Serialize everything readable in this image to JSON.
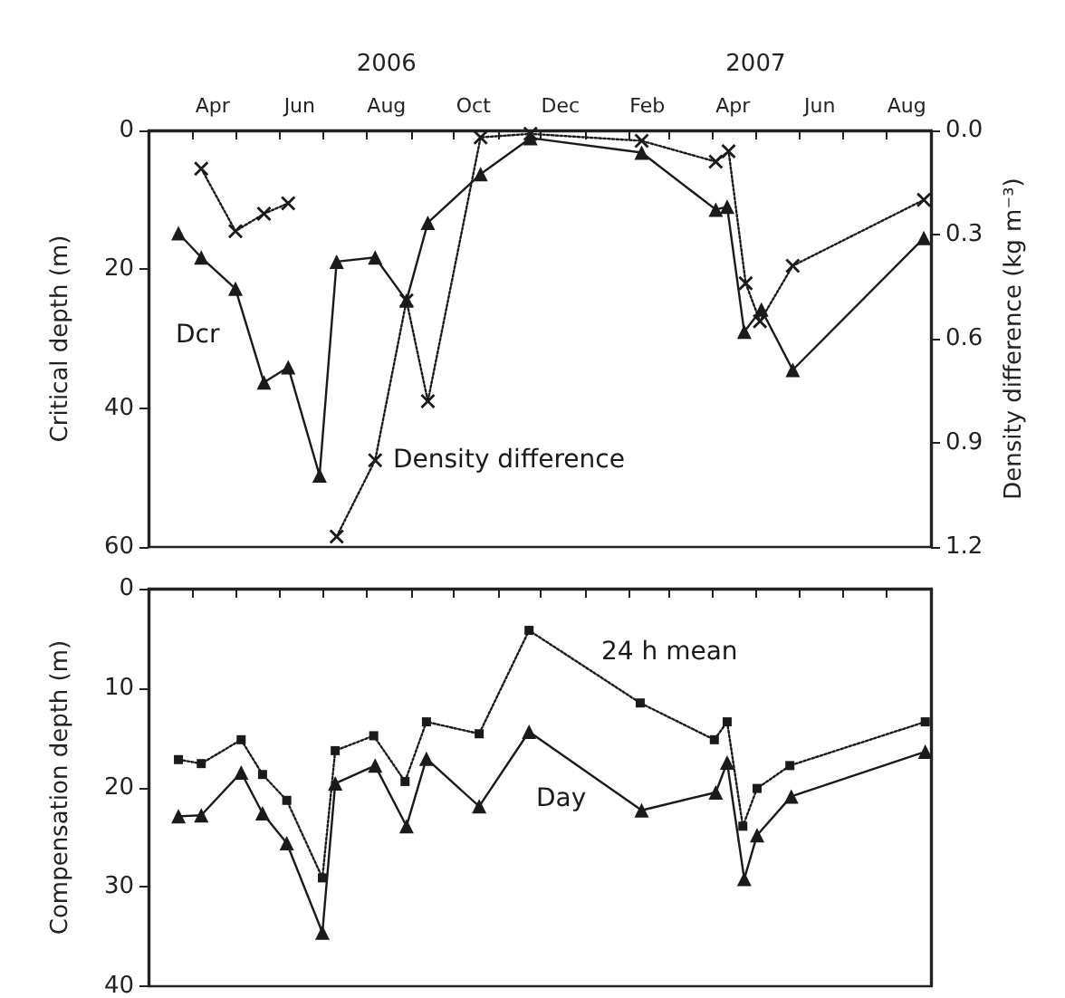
{
  "chart_data": [
    {
      "type": "line",
      "ylabel": "Critical depth (m)",
      "y2label": "Density difference (kg m⁻³)",
      "xlim": [
        "2006-03-01",
        "2007-09-01"
      ],
      "xticks": [
        {
          "value": "2006-03-01",
          "label": null
        },
        {
          "value": "2006-04-01",
          "label": null
        },
        {
          "value": "2006-04-15",
          "label": "Apr"
        },
        {
          "value": "2006-05-01",
          "label": null
        },
        {
          "value": "2006-06-01",
          "label": null
        },
        {
          "value": "2006-06-15",
          "label": "Jun"
        },
        {
          "value": "2006-07-01",
          "label": null
        },
        {
          "value": "2006-08-01",
          "label": null
        },
        {
          "value": "2006-08-15",
          "label": "Aug"
        },
        {
          "value": "2006-09-01",
          "label": null
        },
        {
          "value": "2006-10-01",
          "label": null
        },
        {
          "value": "2006-10-15",
          "label": "Oct"
        },
        {
          "value": "2006-11-01",
          "label": null
        },
        {
          "value": "2006-12-01",
          "label": null
        },
        {
          "value": "2006-12-15",
          "label": "Dec"
        },
        {
          "value": "2007-01-01",
          "label": null
        },
        {
          "value": "2007-02-01",
          "label": null
        },
        {
          "value": "2007-02-14",
          "label": "Feb"
        },
        {
          "value": "2007-03-01",
          "label": null
        },
        {
          "value": "2007-04-01",
          "label": null
        },
        {
          "value": "2007-04-15",
          "label": "Apr"
        },
        {
          "value": "2007-05-01",
          "label": null
        },
        {
          "value": "2007-06-01",
          "label": null
        },
        {
          "value": "2007-06-15",
          "label": "Jun"
        },
        {
          "value": "2007-07-01",
          "label": null
        },
        {
          "value": "2007-08-01",
          "label": null
        },
        {
          "value": "2007-08-15",
          "label": "Aug"
        },
        {
          "value": "2007-09-01",
          "label": null
        }
      ],
      "x2lim": [
        "2006-03-01",
        "2007-09-01"
      ],
      "x2ticks": [
        {
          "value": "2006-08-15",
          "label": "2006"
        },
        {
          "value": "2007-05-01",
          "label": "2007"
        }
      ],
      "ylim": [
        60,
        0
      ],
      "yticks": [
        0,
        20,
        40,
        60
      ],
      "y2lim": [
        1.2,
        0
      ],
      "y2ticks": [
        {
          "value": 0,
          "label": "0.0"
        },
        0.3,
        0.6,
        0.9,
        1.2
      ],
      "grid": false,
      "legend": false,
      "series": [
        {
          "name": "Dcr",
          "color": "#1a1a1a",
          "marker": "triangle",
          "line_style": "solid",
          "x": [
            "2006-03-22",
            "2006-04-07",
            "2006-05-01",
            "2006-05-21",
            "2006-06-07",
            "2006-06-29",
            "2006-07-11",
            "2006-08-07",
            "2006-08-29",
            "2006-09-13",
            "2006-10-20",
            "2006-11-24",
            "2007-02-10",
            "2007-04-03",
            "2007-04-11",
            "2007-04-23",
            "2007-05-05",
            "2007-05-27",
            "2007-08-27"
          ],
          "values": [
            14.8,
            18.3,
            22.8,
            36.3,
            34.1,
            49.7,
            18.9,
            18.3,
            24.5,
            13.3,
            6.3,
            1.1,
            3.2,
            11.4,
            11.0,
            29.0,
            25.8,
            34.5,
            15.5
          ]
        },
        {
          "name": "Density difference",
          "color": "#1a1a1a",
          "marker": "cross",
          "line_style": "dotted",
          "axis": "y2",
          "x": [
            "2006-04-07",
            "2006-05-01",
            "2006-05-21",
            "2006-06-07",
            "2006-06-20",
            "2006-07-11",
            "2006-08-07",
            "2006-08-29",
            "2006-09-13",
            "2006-10-20",
            "2006-11-24",
            "2007-02-10",
            "2007-04-03",
            "2007-04-12",
            "2007-04-24",
            "2007-05-04",
            "2007-05-27",
            "2007-08-27"
          ],
          "values": [
            0.11,
            0.29,
            0.24,
            0.21,
            null,
            1.17,
            0.95,
            0.49,
            0.78,
            0.02,
            0.01,
            0.03,
            0.09,
            0.06,
            0.44,
            0.55,
            0.39,
            0.2
          ]
        }
      ]
    },
    {
      "type": "line",
      "ylabel": "Compensation depth (m)",
      "tick_labels": "y",
      "xlim": [
        "2006-03-01",
        "2007-09-01"
      ],
      "xticks": [
        {
          "value": "2006-03-01",
          "label": null
        },
        {
          "value": "2006-04-01",
          "label": null
        },
        {
          "value": "2006-05-01",
          "label": null
        },
        {
          "value": "2006-06-01",
          "label": null
        },
        {
          "value": "2006-07-01",
          "label": null
        },
        {
          "value": "2006-08-01",
          "label": null
        },
        {
          "value": "2006-09-01",
          "label": null
        },
        {
          "value": "2006-10-01",
          "label": null
        },
        {
          "value": "2006-11-01",
          "label": null
        },
        {
          "value": "2006-12-01",
          "label": null
        },
        {
          "value": "2007-01-01",
          "label": null
        },
        {
          "value": "2007-02-01",
          "label": null
        },
        {
          "value": "2007-03-01",
          "label": null
        },
        {
          "value": "2007-04-01",
          "label": null
        },
        {
          "value": "2007-05-01",
          "label": null
        },
        {
          "value": "2007-06-01",
          "label": null
        },
        {
          "value": "2007-07-01",
          "label": null
        },
        {
          "value": "2007-08-01",
          "label": null
        },
        {
          "value": "2007-09-01",
          "label": null
        }
      ],
      "ylim": [
        40,
        0
      ],
      "yticks": [
        0,
        10,
        20,
        30,
        40
      ],
      "grid": false,
      "legend": false,
      "series": [
        {
          "name": "24 h mean",
          "color": "#1a1a1a",
          "marker": "square",
          "line_style": "dotted",
          "x": [
            "2006-03-22",
            "2006-04-07",
            "2006-05-05",
            "2006-05-20",
            "2006-06-06",
            "2006-07-01",
            "2006-07-10",
            "2006-08-06",
            "2006-08-28",
            "2006-09-12",
            "2006-10-19",
            "2006-11-23",
            "2007-02-09",
            "2007-04-02",
            "2007-04-11",
            "2007-04-22",
            "2007-05-02",
            "2007-05-25",
            "2007-08-28"
          ],
          "values": [
            17.2,
            17.6,
            15.2,
            18.7,
            21.3,
            29.1,
            16.3,
            14.8,
            19.4,
            13.4,
            14.6,
            4.2,
            11.5,
            15.2,
            13.4,
            23.9,
            20.1,
            17.8,
            13.4
          ]
        },
        {
          "name": "Day",
          "color": "#1a1a1a",
          "marker": "triangle",
          "line_style": "solid",
          "x": [
            "2006-03-22",
            "2006-04-07",
            "2006-05-05",
            "2006-05-20",
            "2006-06-06",
            "2006-07-01",
            "2006-07-10",
            "2006-08-07",
            "2006-08-29",
            "2006-09-12",
            "2006-10-19",
            "2006-11-23",
            "2007-02-10",
            "2007-04-03",
            "2007-04-11",
            "2007-04-23",
            "2007-05-02",
            "2007-05-26",
            "2007-08-28"
          ],
          "values": [
            22.9,
            22.8,
            18.5,
            22.6,
            25.6,
            34.6,
            19.6,
            17.8,
            23.9,
            17.1,
            21.9,
            14.4,
            22.3,
            20.5,
            17.5,
            29.2,
            24.8,
            20.9,
            16.4
          ]
        }
      ]
    }
  ]
}
